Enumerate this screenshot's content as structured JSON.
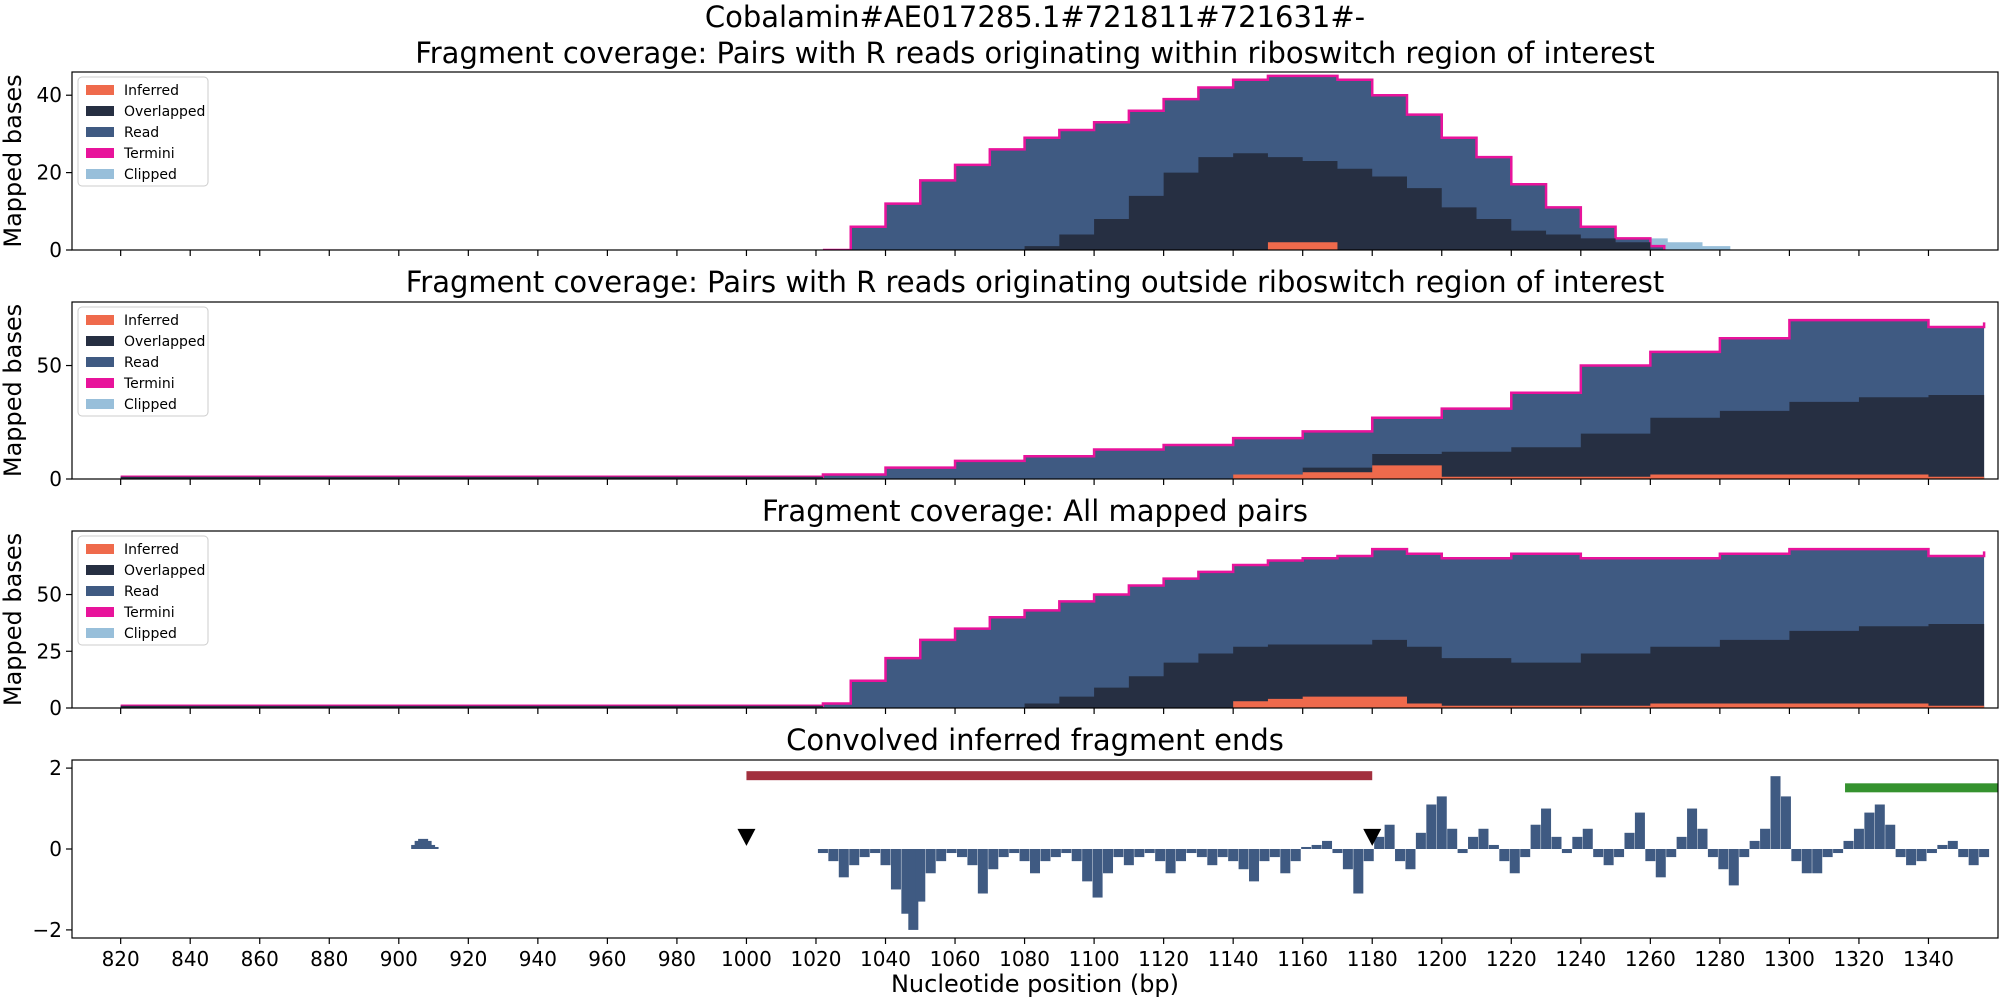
{
  "figure": {
    "suptitle": "Cobalamin#AE017285.1#721811#721631#-",
    "xlabel": "Nucleotide position (bp)"
  },
  "colors": {
    "inferred": "#ef6a4c",
    "overlapped": "#262f42",
    "read": "#3f5a82",
    "termini": "#e8139b",
    "clipped": "#98bfda",
    "bar_red": "#a2303e",
    "bar_green": "#35922f",
    "conv": "#3f5a82",
    "marker": "#000000"
  },
  "legend": [
    "Inferred",
    "Overlapped",
    "Read",
    "Termini",
    "Clipped"
  ],
  "chart_data": [
    {
      "type": "area",
      "title": "Fragment coverage: Pairs with R reads originating within riboswitch region of interest",
      "ylabel": "Mapped bases",
      "xlim": [
        806,
        1360
      ],
      "ylim": [
        0,
        46
      ],
      "yticks": [
        0,
        20,
        40
      ],
      "xticks": [
        820,
        840,
        860,
        880,
        900,
        920,
        940,
        960,
        980,
        1000,
        1020,
        1040,
        1060,
        1080,
        1100,
        1120,
        1140,
        1160,
        1180,
        1200,
        1220,
        1240,
        1260,
        1280,
        1300,
        1320,
        1340
      ],
      "x": [
        1022,
        1030,
        1040,
        1050,
        1060,
        1070,
        1080,
        1090,
        1100,
        1110,
        1120,
        1130,
        1140,
        1150,
        1160,
        1170,
        1180,
        1190,
        1200,
        1210,
        1220,
        1230,
        1240,
        1250,
        1260,
        1264
      ],
      "read_total": [
        0,
        6,
        12,
        18,
        22,
        26,
        29,
        31,
        33,
        36,
        39,
        42,
        44,
        45,
        45,
        44,
        40,
        35,
        29,
        24,
        17,
        11,
        6,
        3,
        1,
        0
      ],
      "overlapped": [
        0,
        0,
        0,
        0,
        0,
        0,
        1,
        4,
        8,
        14,
        20,
        24,
        25,
        24,
        23,
        21,
        19,
        16,
        11,
        8,
        5,
        4,
        3,
        2,
        0,
        0
      ],
      "inferred": [
        0,
        0,
        0,
        0,
        0,
        0,
        0,
        0,
        0,
        0,
        0,
        0,
        0,
        2,
        2,
        0,
        0,
        0,
        0,
        0,
        0,
        0,
        0,
        0,
        0,
        0
      ],
      "clipped_x": [
        1256,
        1265,
        1275,
        1283
      ],
      "clipped": [
        3,
        2,
        1,
        1
      ]
    },
    {
      "type": "area",
      "title": "Fragment coverage: Pairs with R reads originating outside riboswitch region of interest",
      "ylabel": "Mapped bases",
      "xlim": [
        806,
        1360
      ],
      "ylim": [
        0,
        78
      ],
      "yticks": [
        0,
        50
      ],
      "xticks": [
        820,
        840,
        860,
        880,
        900,
        920,
        940,
        960,
        980,
        1000,
        1020,
        1040,
        1060,
        1080,
        1100,
        1120,
        1140,
        1160,
        1180,
        1200,
        1220,
        1240,
        1260,
        1280,
        1300,
        1320,
        1340
      ],
      "x": [
        820,
        908,
        1022,
        1040,
        1060,
        1080,
        1100,
        1120,
        1140,
        1160,
        1180,
        1200,
        1220,
        1240,
        1260,
        1280,
        1300,
        1320,
        1340,
        1356
      ],
      "read_total": [
        1,
        1,
        2,
        5,
        8,
        10,
        13,
        15,
        18,
        21,
        27,
        31,
        38,
        50,
        56,
        62,
        70,
        70,
        67,
        69
      ],
      "overlapped": [
        1,
        1,
        0,
        0,
        0,
        0,
        0,
        0,
        2,
        5,
        11,
        12,
        14,
        20,
        27,
        30,
        34,
        36,
        37,
        31
      ],
      "inferred": [
        0,
        0,
        0,
        0,
        0,
        0,
        0,
        0,
        2,
        3,
        6,
        1,
        1,
        1,
        2,
        2,
        2,
        2,
        1,
        1
      ],
      "clipped_x": [
        880,
        908
      ],
      "clipped": [
        1,
        1
      ]
    },
    {
      "type": "area",
      "title": "Fragment coverage: All mapped pairs",
      "ylabel": "Mapped bases",
      "xlim": [
        806,
        1360
      ],
      "ylim": [
        0,
        78
      ],
      "yticks": [
        0,
        25,
        50
      ],
      "xticks": [
        820,
        840,
        860,
        880,
        900,
        920,
        940,
        960,
        980,
        1000,
        1020,
        1040,
        1060,
        1080,
        1100,
        1120,
        1140,
        1160,
        1180,
        1200,
        1220,
        1240,
        1260,
        1280,
        1300,
        1320,
        1340
      ],
      "x": [
        820,
        908,
        1022,
        1030,
        1040,
        1050,
        1060,
        1070,
        1080,
        1090,
        1100,
        1110,
        1120,
        1130,
        1140,
        1150,
        1160,
        1170,
        1180,
        1190,
        1200,
        1220,
        1240,
        1260,
        1280,
        1300,
        1320,
        1340,
        1356
      ],
      "read_total": [
        1,
        1,
        2,
        12,
        22,
        30,
        35,
        40,
        43,
        47,
        50,
        54,
        57,
        60,
        63,
        65,
        66,
        67,
        70,
        68,
        66,
        68,
        66,
        66,
        68,
        70,
        70,
        67,
        69
      ],
      "overlapped": [
        1,
        1,
        0,
        0,
        0,
        0,
        0,
        0,
        2,
        5,
        9,
        14,
        20,
        24,
        27,
        28,
        28,
        28,
        30,
        27,
        22,
        20,
        24,
        27,
        30,
        34,
        36,
        37,
        31
      ],
      "inferred": [
        0,
        0,
        0,
        0,
        0,
        0,
        0,
        0,
        0,
        0,
        0,
        0,
        0,
        0,
        3,
        4,
        5,
        5,
        5,
        2,
        1,
        1,
        1,
        2,
        2,
        2,
        2,
        1,
        1
      ],
      "clipped_x": [
        880,
        908
      ],
      "clipped": [
        1,
        1
      ]
    },
    {
      "type": "bar",
      "title": "Convolved inferred fragment ends",
      "ylabel": "",
      "xlim": [
        806,
        1360
      ],
      "ylim": [
        -2.2,
        2.2
      ],
      "yticks": [
        -2,
        0,
        2
      ],
      "xticks": [
        820,
        840,
        860,
        880,
        900,
        920,
        940,
        960,
        980,
        1000,
        1020,
        1040,
        1060,
        1080,
        1100,
        1120,
        1140,
        1160,
        1180,
        1200,
        1220,
        1240,
        1260,
        1280,
        1300,
        1320,
        1340
      ],
      "x": [
        905,
        906,
        907,
        908,
        909,
        910,
        1022,
        1025,
        1028,
        1031,
        1034,
        1037,
        1040,
        1043,
        1046,
        1048,
        1050,
        1053,
        1056,
        1059,
        1062,
        1065,
        1068,
        1071,
        1074,
        1077,
        1080,
        1083,
        1086,
        1089,
        1092,
        1095,
        1098,
        1101,
        1104,
        1107,
        1110,
        1113,
        1116,
        1119,
        1122,
        1125,
        1128,
        1131,
        1134,
        1137,
        1140,
        1143,
        1146,
        1149,
        1152,
        1155,
        1158,
        1161,
        1164,
        1167,
        1170,
        1173,
        1176,
        1179,
        1182,
        1185,
        1188,
        1191,
        1194,
        1197,
        1200,
        1203,
        1206,
        1209,
        1212,
        1215,
        1218,
        1221,
        1224,
        1227,
        1230,
        1233,
        1236,
        1239,
        1242,
        1245,
        1248,
        1251,
        1254,
        1257,
        1260,
        1263,
        1266,
        1269,
        1272,
        1275,
        1278,
        1281,
        1284,
        1287,
        1290,
        1293,
        1296,
        1299,
        1302,
        1305,
        1308,
        1311,
        1314,
        1317,
        1320,
        1323,
        1326,
        1329,
        1332,
        1335,
        1338,
        1341,
        1344,
        1347,
        1350,
        1353,
        1356
      ],
      "values": [
        0.1,
        0.2,
        0.25,
        0.2,
        0.1,
        0.05,
        -0.1,
        -0.3,
        -0.7,
        -0.4,
        -0.2,
        -0.1,
        -0.4,
        -1.0,
        -1.6,
        -2.0,
        -1.3,
        -0.6,
        -0.3,
        -0.1,
        -0.2,
        -0.4,
        -1.1,
        -0.5,
        -0.2,
        -0.1,
        -0.3,
        -0.6,
        -0.3,
        -0.2,
        -0.1,
        -0.3,
        -0.8,
        -1.2,
        -0.6,
        -0.2,
        -0.4,
        -0.2,
        -0.1,
        -0.3,
        -0.6,
        -0.3,
        -0.1,
        -0.2,
        -0.4,
        -0.2,
        -0.3,
        -0.5,
        -0.8,
        -0.3,
        -0.2,
        -0.6,
        -0.3,
        0.05,
        0.1,
        0.2,
        -0.1,
        -0.5,
        -1.1,
        -0.3,
        0.3,
        0.6,
        -0.3,
        -0.5,
        0.4,
        1.1,
        1.3,
        0.5,
        -0.1,
        0.3,
        0.5,
        0.1,
        -0.3,
        -0.6,
        -0.2,
        0.6,
        1.0,
        0.3,
        -0.1,
        0.3,
        0.5,
        -0.2,
        -0.4,
        -0.2,
        0.4,
        0.9,
        -0.3,
        -0.7,
        -0.2,
        0.3,
        1.0,
        0.5,
        -0.2,
        -0.5,
        -0.9,
        -0.2,
        0.2,
        0.5,
        1.8,
        1.3,
        -0.3,
        -0.6,
        -0.6,
        -0.2,
        -0.1,
        0.2,
        0.5,
        0.9,
        1.1,
        0.6,
        -0.2,
        -0.4,
        -0.3,
        -0.1,
        0.1,
        0.2,
        -0.2,
        -0.4,
        -0.2
      ],
      "markers_x": [
        1000,
        1180
      ],
      "bars": [
        {
          "x0": 1000,
          "x1": 1180,
          "y": 1.8,
          "color": "bar_red"
        },
        {
          "x0": 1316,
          "x1": 1360,
          "y": 1.5,
          "color": "bar_green"
        }
      ]
    }
  ]
}
